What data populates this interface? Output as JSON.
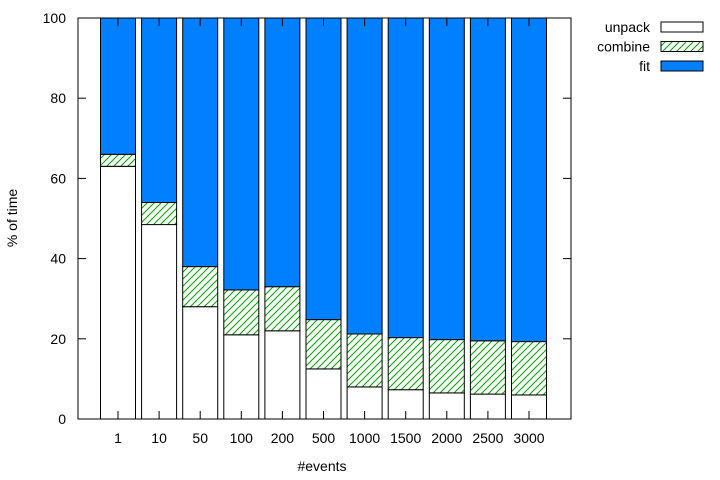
{
  "chart_data": {
    "type": "bar",
    "stacked": true,
    "title": "",
    "xlabel": "#events",
    "ylabel": "% of time",
    "ylim": [
      0,
      100
    ],
    "yticks": [
      0,
      20,
      40,
      60,
      80,
      100
    ],
    "grid": false,
    "legend_position": "outside-top-right",
    "categories": [
      "1",
      "10",
      "50",
      "100",
      "200",
      "500",
      "1000",
      "1500",
      "2000",
      "2500",
      "3000"
    ],
    "series": [
      {
        "name": "unpack",
        "fill": "plain",
        "color": "#ffffff",
        "values": [
          63,
          48.5,
          28,
          21,
          22,
          12.5,
          8,
          7.3,
          6.5,
          6.2,
          6
        ]
      },
      {
        "name": "combine",
        "fill": "hatched",
        "color": "#00a000",
        "values": [
          3,
          5.5,
          10,
          11.2,
          11,
          12.3,
          13.2,
          13,
          13.3,
          13.3,
          13.3
        ]
      },
      {
        "name": "fit",
        "fill": "solid",
        "color": "#0080ff",
        "values": [
          34,
          46,
          62,
          67.8,
          67,
          75.2,
          78.8,
          79.7,
          80.2,
          80.5,
          80.7
        ]
      }
    ]
  }
}
